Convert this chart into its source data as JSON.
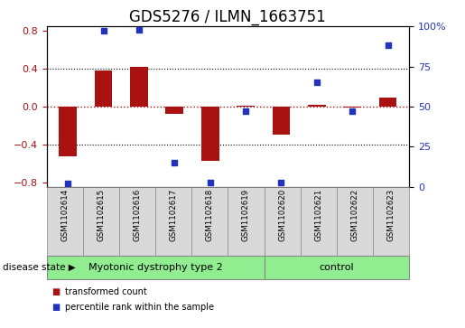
{
  "title": "GDS5276 / ILMN_1663751",
  "samples": [
    "GSM1102614",
    "GSM1102615",
    "GSM1102616",
    "GSM1102617",
    "GSM1102618",
    "GSM1102619",
    "GSM1102620",
    "GSM1102621",
    "GSM1102622",
    "GSM1102623"
  ],
  "red_values": [
    -0.53,
    0.38,
    0.42,
    -0.08,
    -0.57,
    0.01,
    -0.3,
    0.02,
    -0.01,
    0.1
  ],
  "blue_values": [
    2.0,
    97.0,
    98.0,
    15.0,
    3.0,
    47.0,
    3.0,
    65.0,
    47.0,
    88.0
  ],
  "group1_label": "Myotonic dystrophy type 2",
  "group2_label": "control",
  "group1_count": 6,
  "group2_count": 4,
  "disease_state_label": "disease state",
  "legend_red": "transformed count",
  "legend_blue": "percentile rank within the sample",
  "red_color": "#aa1111",
  "blue_color": "#2233bb",
  "bar_width": 0.5,
  "ylim_left": [
    -0.85,
    0.85
  ],
  "ylim_right": [
    0,
    100
  ],
  "yticks_left": [
    -0.8,
    -0.4,
    0.0,
    0.4,
    0.8
  ],
  "yticks_right": [
    0,
    25,
    50,
    75,
    100
  ],
  "hlines_black": [
    -0.4,
    0.4
  ],
  "hline_red": 0.0,
  "bg_color": "#d8d8d8",
  "group_bg_color": "#90ee90",
  "title_fontsize": 12,
  "tick_fontsize": 8,
  "label_fontsize": 8
}
